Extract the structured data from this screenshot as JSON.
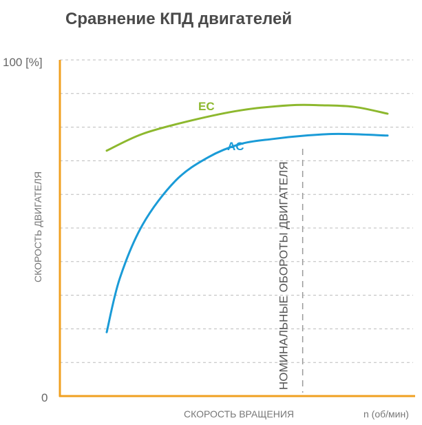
{
  "title": "Сравнение КПД двигателей",
  "chart_data": {
    "type": "line",
    "title": "Сравнение КПД двигателей",
    "ylabel": "СКОРОСТЬ ДВИГАТЕЛЯ",
    "xlabel": "СКОРОСТЬ ВРАЩЕНИЯ",
    "x_unit_label": "n (об/мин)",
    "y_tick_labels": {
      "max": "100 [%]",
      "min": "0"
    },
    "ylim": [
      0,
      100
    ],
    "xlim": [
      0,
      100
    ],
    "grid": true,
    "grid_y_values": [
      10,
      20,
      30,
      40,
      50,
      60,
      70,
      80,
      90,
      100
    ],
    "series": [
      {
        "name": "EC",
        "color": "#8db82e",
        "x": [
          14,
          25,
          40,
          55,
          70,
          80,
          90,
          100
        ],
        "y": [
          73,
          78,
          82,
          85,
          86.5,
          86.5,
          86,
          84
        ]
      },
      {
        "name": "AC",
        "color": "#1a9bd7",
        "x": [
          14,
          18,
          25,
          35,
          45,
          55,
          65,
          75,
          85,
          100
        ],
        "y": [
          19,
          35,
          51,
          64,
          71,
          75,
          76.5,
          77.5,
          78,
          77.5
        ]
      }
    ],
    "annotation": {
      "text": "НОМИНАЛЬНЫЕ ОБОРОТЫ ДВИГАТЕЛЯ",
      "x": 74
    },
    "colors": {
      "axis": "#f0a020",
      "grid": "#bbbbbb",
      "marker": "#999999"
    }
  }
}
